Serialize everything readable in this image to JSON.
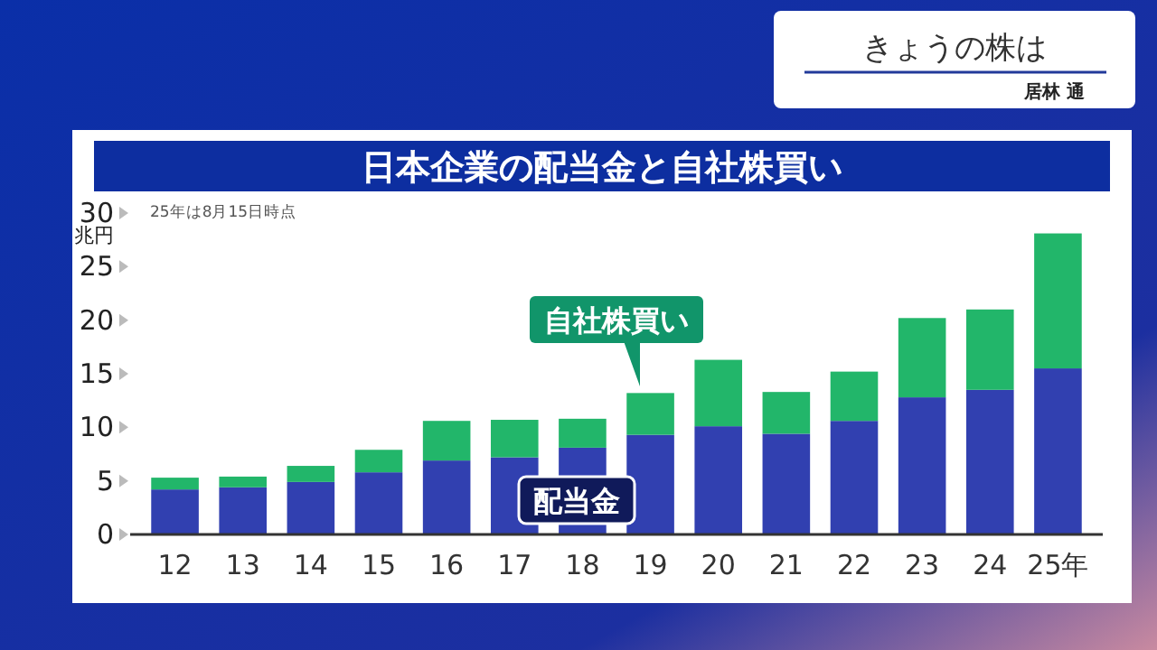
{
  "chart_data": {
    "type": "bar",
    "stacked": true,
    "title": "日本企業の配当金と自社株買い",
    "ylabel": "兆円",
    "categories": [
      "12",
      "13",
      "14",
      "15",
      "16",
      "17",
      "18",
      "19",
      "20",
      "21",
      "22",
      "23",
      "24",
      "25年"
    ],
    "series": [
      {
        "name": "配当金",
        "color": "#3140b0",
        "values": [
          4.2,
          4.4,
          4.9,
          5.8,
          6.9,
          7.2,
          8.1,
          9.3,
          10.1,
          9.4,
          10.6,
          12.8,
          13.5,
          15.5
        ]
      },
      {
        "name": "自社株買い",
        "color": "#22b66a",
        "values": [
          1.1,
          1.0,
          1.5,
          2.1,
          3.7,
          3.5,
          2.7,
          3.9,
          6.2,
          3.9,
          4.6,
          7.4,
          7.5,
          12.6
        ]
      }
    ],
    "ylim": [
      0,
      30
    ],
    "yticks": [
      0,
      5,
      10,
      15,
      20,
      25,
      30
    ],
    "grid": false,
    "annotations": [
      "25年は8月15日時点",
      "きょうの株は",
      "居林 通"
    ]
  }
}
